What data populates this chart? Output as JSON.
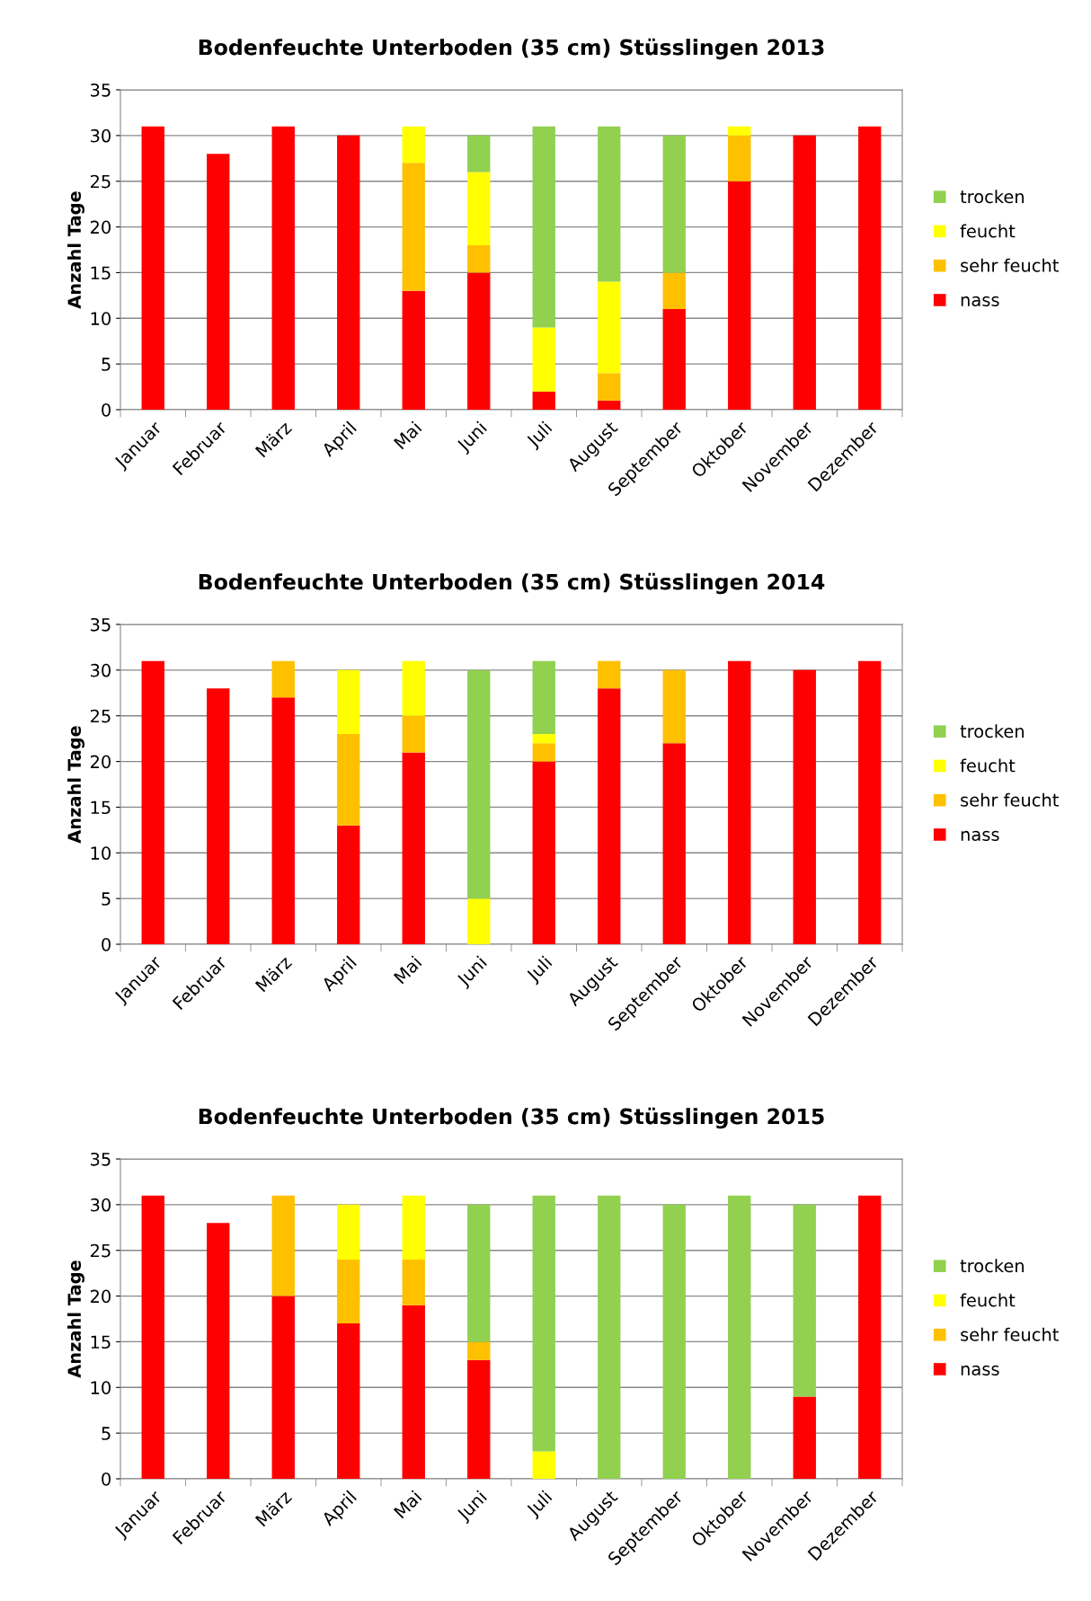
{
  "chart_data": [
    {
      "type": "bar",
      "title": "Bodenfeuchte Unterboden (35 cm) Stüsslingen 2013",
      "ylabel": "Anzahl Tage",
      "stacked": true,
      "grid": "y",
      "legend": "right",
      "ylim": [
        0,
        35
      ],
      "yticks": [
        0,
        5,
        10,
        15,
        20,
        25,
        30,
        35
      ],
      "categories": [
        "Januar",
        "Februar",
        "März",
        "April",
        "Mai",
        "Juni",
        "Juli",
        "August",
        "September",
        "Oktober",
        "November",
        "Dezember"
      ],
      "series": [
        {
          "name": "nass",
          "color": "#ff0000",
          "values": [
            31,
            28,
            31,
            30,
            13,
            15,
            2,
            1,
            11,
            25,
            30,
            31
          ]
        },
        {
          "name": "sehr feucht",
          "color": "#ffc000",
          "values": [
            0,
            0,
            0,
            0,
            14,
            3,
            0,
            3,
            4,
            5,
            0,
            0
          ]
        },
        {
          "name": "feucht",
          "color": "#ffff00",
          "values": [
            0,
            0,
            0,
            0,
            4,
            8,
            7,
            10,
            0,
            1,
            0,
            0
          ]
        },
        {
          "name": "trocken",
          "color": "#92d050",
          "values": [
            0,
            0,
            0,
            0,
            0,
            4,
            22,
            17,
            15,
            0,
            0,
            0
          ]
        }
      ]
    },
    {
      "type": "bar",
      "title": "Bodenfeuchte Unterboden (35 cm) Stüsslingen 2014",
      "ylabel": "Anzahl Tage",
      "stacked": true,
      "grid": "y",
      "legend": "right",
      "ylim": [
        0,
        35
      ],
      "yticks": [
        0,
        5,
        10,
        15,
        20,
        25,
        30,
        35
      ],
      "categories": [
        "Januar",
        "Februar",
        "März",
        "April",
        "Mai",
        "Juni",
        "Juli",
        "August",
        "September",
        "Oktober",
        "November",
        "Dezember"
      ],
      "series": [
        {
          "name": "nass",
          "color": "#ff0000",
          "values": [
            31,
            28,
            27,
            13,
            21,
            0,
            20,
            28,
            22,
            31,
            30,
            31
          ]
        },
        {
          "name": "sehr feucht",
          "color": "#ffc000",
          "values": [
            0,
            0,
            4,
            10,
            4,
            0,
            2,
            3,
            8,
            0,
            0,
            0
          ]
        },
        {
          "name": "feucht",
          "color": "#ffff00",
          "values": [
            0,
            0,
            0,
            7,
            6,
            5,
            1,
            0,
            0,
            0,
            0,
            0
          ]
        },
        {
          "name": "trocken",
          "color": "#92d050",
          "values": [
            0,
            0,
            0,
            0,
            0,
            25,
            8,
            0,
            0,
            0,
            0,
            0
          ]
        }
      ]
    },
    {
      "type": "bar",
      "title": "Bodenfeuchte Unterboden (35 cm) Stüsslingen 2015",
      "ylabel": "Anzahl Tage",
      "stacked": true,
      "grid": "y",
      "legend": "right",
      "ylim": [
        0,
        35
      ],
      "yticks": [
        0,
        5,
        10,
        15,
        20,
        25,
        30,
        35
      ],
      "categories": [
        "Januar",
        "Februar",
        "März",
        "April",
        "Mai",
        "Juni",
        "Juli",
        "August",
        "September",
        "Oktober",
        "November",
        "Dezember"
      ],
      "series": [
        {
          "name": "nass",
          "color": "#ff0000",
          "values": [
            31,
            28,
            20,
            17,
            19,
            13,
            0,
            0,
            0,
            0,
            9,
            31
          ]
        },
        {
          "name": "sehr feucht",
          "color": "#ffc000",
          "values": [
            0,
            0,
            11,
            7,
            5,
            2,
            0,
            0,
            0,
            0,
            0,
            0
          ]
        },
        {
          "name": "feucht",
          "color": "#ffff00",
          "values": [
            0,
            0,
            0,
            6,
            7,
            0,
            3,
            0,
            0,
            0,
            0,
            0
          ]
        },
        {
          "name": "trocken",
          "color": "#92d050",
          "values": [
            0,
            0,
            0,
            0,
            0,
            15,
            28,
            31,
            30,
            31,
            21,
            0
          ]
        }
      ]
    }
  ]
}
